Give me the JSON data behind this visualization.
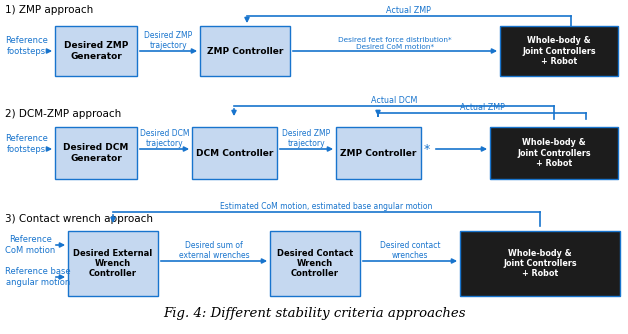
{
  "title": "Fig. 4: Different stability criteria approaches",
  "arrow_color": "#1874CD",
  "box_fill_light": "#C5D8F0",
  "box_fill_dark": "#1C1C1C",
  "box_stroke": "#1874CD",
  "label_color": "#1874CD",
  "section_color": "#000000",
  "bg_color": "#FFFFFF",
  "s1_label": "1) ZMP approach",
  "s2_label": "2) DCM-ZMP approach",
  "s3_label": "3) Contact wrench approach"
}
